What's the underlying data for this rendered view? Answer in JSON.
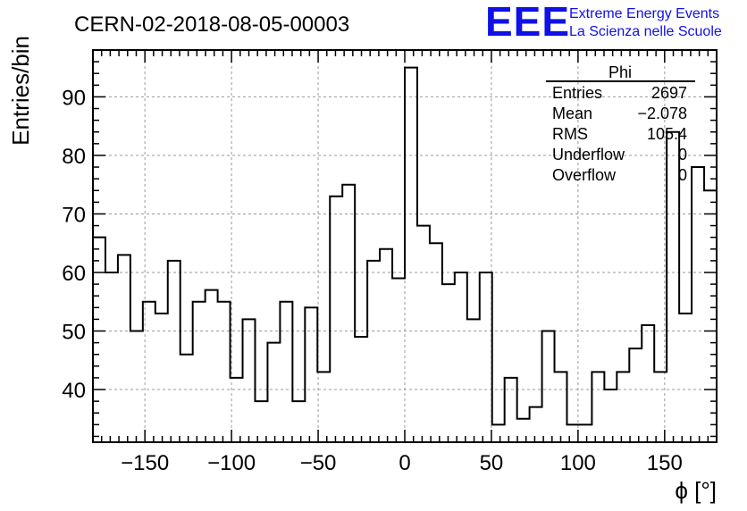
{
  "chart_data": {
    "type": "bar",
    "title": "CERN-02-2018-08-05-00003",
    "xlabel": "ϕ [°]",
    "ylabel": "Entries/bin",
    "xlim": [
      -180,
      180
    ],
    "ylim": [
      31,
      98
    ],
    "bin_width": 7.2,
    "x_ticks": [
      -150,
      -100,
      -50,
      0,
      50,
      100,
      150
    ],
    "y_ticks": [
      40,
      50,
      60,
      70,
      80,
      90
    ],
    "grid": true,
    "values": [
      66,
      60,
      63,
      50,
      55,
      53,
      62,
      46,
      55,
      57,
      55,
      42,
      52,
      38,
      48,
      55,
      38,
      54,
      43,
      73,
      75,
      49,
      62,
      64,
      59,
      95,
      68,
      65,
      58,
      60,
      52,
      60,
      34,
      42,
      35,
      37,
      50,
      43,
      34,
      34,
      43,
      40,
      43,
      47,
      51,
      43,
      84,
      53,
      78,
      74
    ],
    "stats": {
      "name": "Phi",
      "rows": [
        {
          "label": "Entries",
          "value": "2697"
        },
        {
          "label": "Mean",
          "value": "−2.078"
        },
        {
          "label": "RMS",
          "value": "105.4"
        },
        {
          "label": "Underflow",
          "value": "0"
        },
        {
          "label": "Overflow",
          "value": "0"
        }
      ]
    }
  },
  "logo": {
    "mark": "EEE",
    "line1": "Extreme Energy Events",
    "line2": "La Scienza nelle Scuole",
    "color": "#1010e8"
  }
}
